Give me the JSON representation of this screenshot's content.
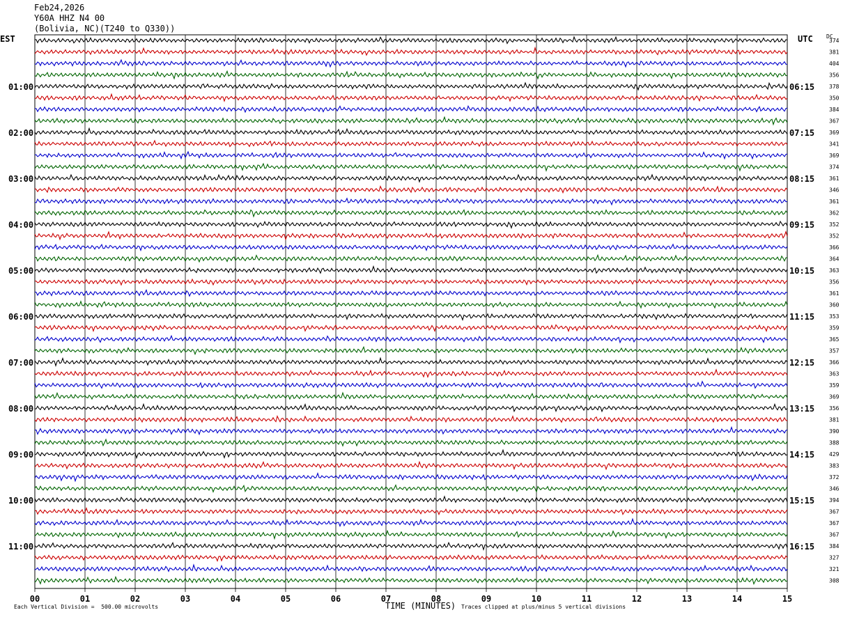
{
  "header": {
    "date": "Feb24,2026",
    "station": "Y60A HHZ N4 00",
    "location": "(Bolivia, NC)(T240 to Q330))"
  },
  "left_timezone": "EST",
  "right_timezone": "UTC",
  "dc_label": "DC",
  "footer": {
    "scale_note": "Each Vertical Division =  500.00 microvolts",
    "xlabel": "TIME (MINUTES)",
    "clip_note": "Traces clipped at plus/minus 5 vertical divisions"
  },
  "colors": [
    "#000000",
    "#cc0000",
    "#0000cc",
    "#006400"
  ],
  "chart_data": {
    "type": "line",
    "title": "Y60A HHZ N4 00 (Bolivia, NC)",
    "xlabel": "TIME (MINUTES)",
    "xlim": [
      0,
      15
    ],
    "x_ticks": [
      "00",
      "01",
      "02",
      "03",
      "04",
      "05",
      "06",
      "07",
      "08",
      "09",
      "10",
      "11",
      "12",
      "13",
      "14",
      "15"
    ],
    "rows_per_hour": 4,
    "row_count": 48,
    "hour_labels_left": [
      "01:00",
      "02:00",
      "03:00",
      "04:00",
      "05:00",
      "06:00",
      "07:00",
      "08:00",
      "09:00",
      "10:00",
      "11:00"
    ],
    "hour_labels_right": [
      "06:15",
      "07:15",
      "08:15",
      "09:15",
      "10:15",
      "11:15",
      "12:15",
      "13:15",
      "14:15",
      "15:15",
      "16:15"
    ],
    "dc_offsets": [
      374,
      381,
      404,
      356,
      378,
      350,
      384,
      367,
      369,
      341,
      369,
      374,
      361,
      346,
      361,
      362,
      352,
      352,
      366,
      364,
      363,
      356,
      361,
      360,
      353,
      359,
      365,
      357,
      366,
      363,
      359,
      369,
      356,
      381,
      390,
      388,
      429,
      383,
      372,
      346,
      394,
      367,
      367,
      367,
      384,
      327,
      321,
      308
    ]
  }
}
